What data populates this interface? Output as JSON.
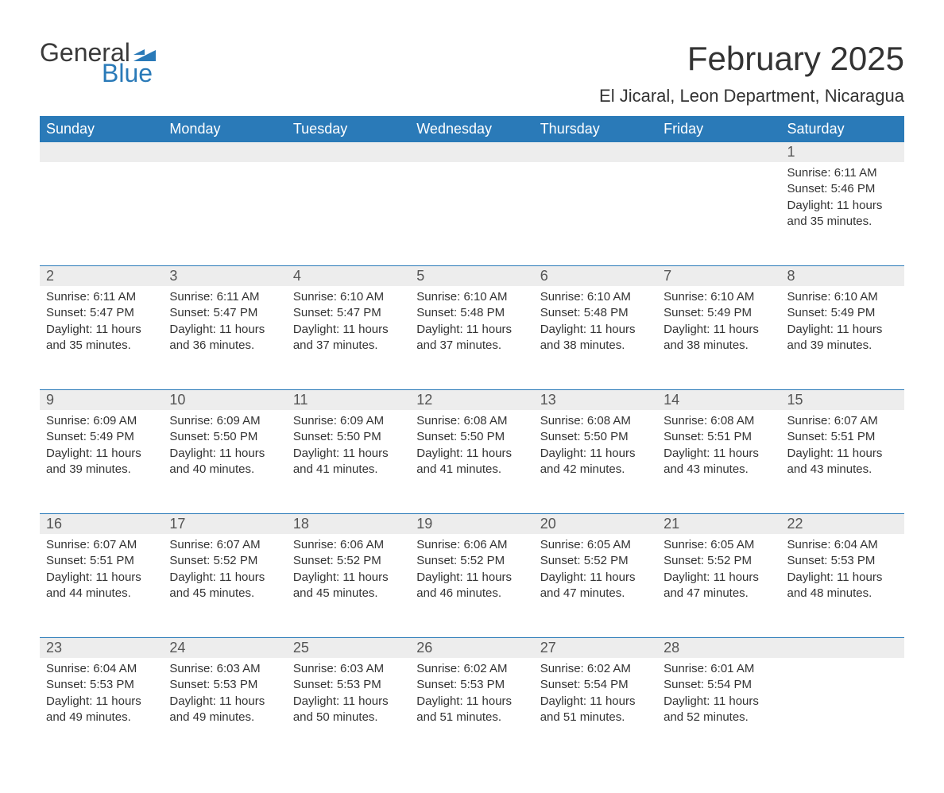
{
  "brand": {
    "word1": "General",
    "word2": "Blue",
    "flag_color": "#2a7ab8",
    "text_color": "#3a3a3a"
  },
  "title": "February 2025",
  "location": "El Jicaral, Leon Department, Nicaragua",
  "colors": {
    "header_bg": "#2a7ab8",
    "header_text": "#ffffff",
    "daynum_bg": "#ededed",
    "week_border": "#2a7ab8",
    "body_text": "#333333"
  },
  "weekdays": [
    "Sunday",
    "Monday",
    "Tuesday",
    "Wednesday",
    "Thursday",
    "Friday",
    "Saturday"
  ],
  "weeks": [
    [
      {
        "empty": true
      },
      {
        "empty": true
      },
      {
        "empty": true
      },
      {
        "empty": true
      },
      {
        "empty": true
      },
      {
        "empty": true
      },
      {
        "n": "1",
        "sunrise": "6:11 AM",
        "sunset": "5:46 PM",
        "daylight": "11 hours and 35 minutes."
      }
    ],
    [
      {
        "n": "2",
        "sunrise": "6:11 AM",
        "sunset": "5:47 PM",
        "daylight": "11 hours and 35 minutes."
      },
      {
        "n": "3",
        "sunrise": "6:11 AM",
        "sunset": "5:47 PM",
        "daylight": "11 hours and 36 minutes."
      },
      {
        "n": "4",
        "sunrise": "6:10 AM",
        "sunset": "5:47 PM",
        "daylight": "11 hours and 37 minutes."
      },
      {
        "n": "5",
        "sunrise": "6:10 AM",
        "sunset": "5:48 PM",
        "daylight": "11 hours and 37 minutes."
      },
      {
        "n": "6",
        "sunrise": "6:10 AM",
        "sunset": "5:48 PM",
        "daylight": "11 hours and 38 minutes."
      },
      {
        "n": "7",
        "sunrise": "6:10 AM",
        "sunset": "5:49 PM",
        "daylight": "11 hours and 38 minutes."
      },
      {
        "n": "8",
        "sunrise": "6:10 AM",
        "sunset": "5:49 PM",
        "daylight": "11 hours and 39 minutes."
      }
    ],
    [
      {
        "n": "9",
        "sunrise": "6:09 AM",
        "sunset": "5:49 PM",
        "daylight": "11 hours and 39 minutes."
      },
      {
        "n": "10",
        "sunrise": "6:09 AM",
        "sunset": "5:50 PM",
        "daylight": "11 hours and 40 minutes."
      },
      {
        "n": "11",
        "sunrise": "6:09 AM",
        "sunset": "5:50 PM",
        "daylight": "11 hours and 41 minutes."
      },
      {
        "n": "12",
        "sunrise": "6:08 AM",
        "sunset": "5:50 PM",
        "daylight": "11 hours and 41 minutes."
      },
      {
        "n": "13",
        "sunrise": "6:08 AM",
        "sunset": "5:50 PM",
        "daylight": "11 hours and 42 minutes."
      },
      {
        "n": "14",
        "sunrise": "6:08 AM",
        "sunset": "5:51 PM",
        "daylight": "11 hours and 43 minutes."
      },
      {
        "n": "15",
        "sunrise": "6:07 AM",
        "sunset": "5:51 PM",
        "daylight": "11 hours and 43 minutes."
      }
    ],
    [
      {
        "n": "16",
        "sunrise": "6:07 AM",
        "sunset": "5:51 PM",
        "daylight": "11 hours and 44 minutes."
      },
      {
        "n": "17",
        "sunrise": "6:07 AM",
        "sunset": "5:52 PM",
        "daylight": "11 hours and 45 minutes."
      },
      {
        "n": "18",
        "sunrise": "6:06 AM",
        "sunset": "5:52 PM",
        "daylight": "11 hours and 45 minutes."
      },
      {
        "n": "19",
        "sunrise": "6:06 AM",
        "sunset": "5:52 PM",
        "daylight": "11 hours and 46 minutes."
      },
      {
        "n": "20",
        "sunrise": "6:05 AM",
        "sunset": "5:52 PM",
        "daylight": "11 hours and 47 minutes."
      },
      {
        "n": "21",
        "sunrise": "6:05 AM",
        "sunset": "5:52 PM",
        "daylight": "11 hours and 47 minutes."
      },
      {
        "n": "22",
        "sunrise": "6:04 AM",
        "sunset": "5:53 PM",
        "daylight": "11 hours and 48 minutes."
      }
    ],
    [
      {
        "n": "23",
        "sunrise": "6:04 AM",
        "sunset": "5:53 PM",
        "daylight": "11 hours and 49 minutes."
      },
      {
        "n": "24",
        "sunrise": "6:03 AM",
        "sunset": "5:53 PM",
        "daylight": "11 hours and 49 minutes."
      },
      {
        "n": "25",
        "sunrise": "6:03 AM",
        "sunset": "5:53 PM",
        "daylight": "11 hours and 50 minutes."
      },
      {
        "n": "26",
        "sunrise": "6:02 AM",
        "sunset": "5:53 PM",
        "daylight": "11 hours and 51 minutes."
      },
      {
        "n": "27",
        "sunrise": "6:02 AM",
        "sunset": "5:54 PM",
        "daylight": "11 hours and 51 minutes."
      },
      {
        "n": "28",
        "sunrise": "6:01 AM",
        "sunset": "5:54 PM",
        "daylight": "11 hours and 52 minutes."
      },
      {
        "empty": true
      }
    ]
  ],
  "labels": {
    "sunrise": "Sunrise: ",
    "sunset": "Sunset: ",
    "daylight": "Daylight: "
  }
}
